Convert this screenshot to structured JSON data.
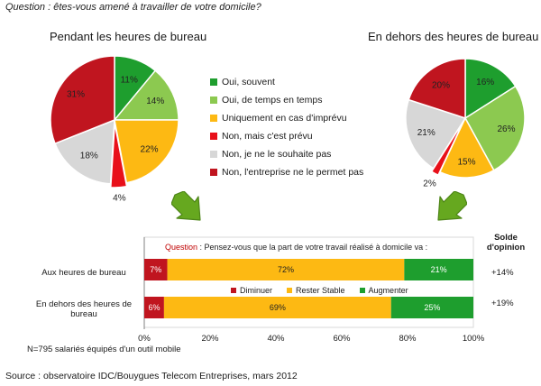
{
  "question": "Question : êtes-vous amené à travailler de votre domicile?",
  "colors": {
    "oui_souvent": "#1e9e2e",
    "oui_temps": "#8cc950",
    "imprevu": "#fdb913",
    "non_prevu": "#e8101a",
    "non_souhaite": "#d7d7d7",
    "non_entreprise": "#c0151f",
    "arrow": "#66a81f",
    "diminuer": "#c0151f",
    "stable": "#fdb913",
    "augmenter": "#1e9e2e"
  },
  "legend": [
    {
      "label": "Oui, souvent",
      "color_key": "oui_souvent"
    },
    {
      "label": "Oui, de temps en temps",
      "color_key": "oui_temps"
    },
    {
      "label": "Uniquement en cas d'imprévu",
      "color_key": "imprevu"
    },
    {
      "label": "Non, mais c'est prévu",
      "color_key": "non_prevu"
    },
    {
      "label": "Non, je ne le souhaite pas",
      "color_key": "non_souhaite"
    },
    {
      "label": "Non, l'entreprise ne le permet pas",
      "color_key": "non_entreprise"
    }
  ],
  "chart_data": [
    {
      "type": "pie",
      "title": "Pendant les heures de bureau",
      "slices": [
        {
          "label": "Oui, souvent",
          "value": 11,
          "display": "11%",
          "color_key": "oui_souvent"
        },
        {
          "label": "Oui, de temps en temps",
          "value": 14,
          "display": "14%",
          "color_key": "oui_temps"
        },
        {
          "label": "Uniquement en cas d'imprévu",
          "value": 22,
          "display": "22%",
          "color_key": "imprevu"
        },
        {
          "label": "Non, mais c'est prévu",
          "value": 4,
          "display": "4%",
          "color_key": "non_prevu"
        },
        {
          "label": "Non, je ne le souhaite pas",
          "value": 18,
          "display": "18%",
          "color_key": "non_souhaite"
        },
        {
          "label": "Non, l'entreprise ne le permet pas",
          "value": 31,
          "display": "31%",
          "color_key": "non_entreprise"
        }
      ]
    },
    {
      "type": "pie",
      "title": "En dehors des heures de bureau",
      "slices": [
        {
          "label": "Oui, souvent",
          "value": 16,
          "display": "16%",
          "color_key": "oui_souvent"
        },
        {
          "label": "Oui, de temps en temps",
          "value": 26,
          "display": "26%",
          "color_key": "oui_temps"
        },
        {
          "label": "Uniquement en cas d'imprévu",
          "value": 15,
          "display": "15%",
          "color_key": "imprevu"
        },
        {
          "label": "Non, mais c'est prévu",
          "value": 2,
          "display": "2%",
          "color_key": "non_prevu"
        },
        {
          "label": "Non, je ne le souhaite pas",
          "value": 21,
          "display": "21%",
          "color_key": "non_souhaite"
        },
        {
          "label": "Non, l'entreprise ne le permet pas",
          "value": 20,
          "display": "20%",
          "color_key": "non_entreprise"
        }
      ]
    },
    {
      "type": "bar",
      "orientation": "horizontal",
      "stacked": true,
      "question_label": "Question",
      "question_text": " : Pensez-vous que la part de votre travail réalisé à domicile va :",
      "categories": [
        "Aux heures de bureau",
        "En dehors des heures de bureau"
      ],
      "series": [
        {
          "name": "Diminuer",
          "values": [
            7,
            6
          ],
          "display": [
            "7%",
            "6%"
          ],
          "color_key": "diminuer"
        },
        {
          "name": "Rester Stable",
          "values": [
            72,
            69
          ],
          "display": [
            "72%",
            "69%"
          ],
          "color_key": "stable"
        },
        {
          "name": "Augmenter",
          "values": [
            21,
            25
          ],
          "display": [
            "21%",
            "25%"
          ],
          "color_key": "augmenter"
        }
      ],
      "xlim": [
        0,
        100
      ],
      "xticks": [
        "0%",
        "20%",
        "40%",
        "60%",
        "80%",
        "100%"
      ],
      "solde_header": "Solde d'opinion",
      "solde": [
        "+14%",
        "+19%"
      ]
    }
  ],
  "row_labels": [
    "Aux heures de bureau",
    "En dehors des heures de bureau"
  ],
  "note": "N=795 salariés équipés d'un outil mobile",
  "source": "Source : observatoire IDC/Bouygues Telecom Entreprises, mars 2012"
}
